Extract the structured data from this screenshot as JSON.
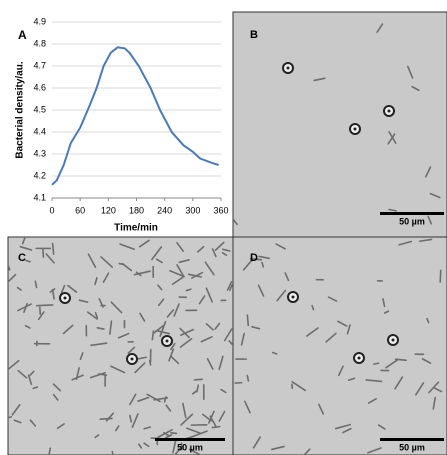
{
  "chart_data": {
    "type": "line",
    "panel_label": "A",
    "xlabel": "Time/min",
    "ylabel": "Bacterial density/au.",
    "x": [
      0,
      10,
      25,
      40,
      60,
      80,
      95,
      110,
      125,
      140,
      155,
      165,
      185,
      210,
      230,
      255,
      280,
      300,
      315,
      340,
      355
    ],
    "values": [
      4.16,
      4.18,
      4.25,
      4.35,
      4.42,
      4.52,
      4.6,
      4.7,
      4.76,
      4.785,
      4.78,
      4.76,
      4.7,
      4.6,
      4.5,
      4.4,
      4.34,
      4.31,
      4.28,
      4.26,
      4.25
    ],
    "color": "#4a7ab5",
    "xlim": [
      0,
      360
    ],
    "xticks": [
      0,
      60,
      120,
      180,
      240,
      300,
      360
    ],
    "ylim": [
      4.1,
      4.9
    ],
    "yticks": [
      4.1,
      4.2,
      4.3,
      4.4,
      4.5,
      4.6,
      4.7,
      4.8,
      4.9
    ],
    "grid": true
  },
  "panels": [
    {
      "label": "B",
      "scale_bar": "50 µm"
    },
    {
      "label": "C",
      "scale_bar": "50 µm"
    },
    {
      "label": "D",
      "scale_bar": "50 µm"
    }
  ]
}
